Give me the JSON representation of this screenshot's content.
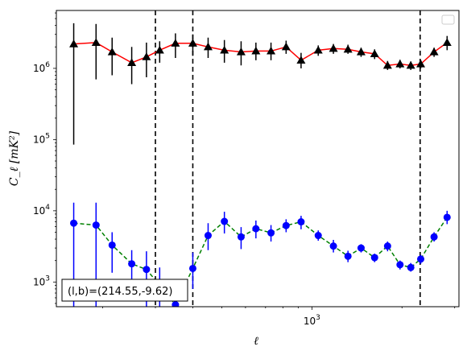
{
  "chart_data": {
    "type": "scatter",
    "title": "",
    "xlabel": "ℓ",
    "ylabel": "C_ℓ  [mK²]",
    "xscale": "log",
    "yscale": "log",
    "xlim": [
      140,
      3100
    ],
    "ylim": [
      450,
      6500000
    ],
    "grid": false,
    "legend": "top-right",
    "annotation": "(l,b)=(214.55,-9.62)",
    "x_ticks": [
      {
        "value": 1000,
        "label": "10^3"
      }
    ],
    "y_ticks": [
      {
        "value": 1000,
        "label": "10^3"
      },
      {
        "value": 10000,
        "label": "10^4"
      },
      {
        "value": 100000,
        "label": "10^5"
      },
      {
        "value": 1000000,
        "label": "10^6"
      }
    ],
    "vertical_lines": [
      300,
      400,
      2300
    ],
    "series": [
      {
        "marker": "triangle",
        "line_style": "solid",
        "color": "#000000",
        "line_color": "#ff0000",
        "x": [
          160,
          190,
          215,
          250,
          280,
          310,
          350,
          400,
          450,
          510,
          580,
          650,
          730,
          820,
          920,
          1050,
          1180,
          1320,
          1460,
          1620,
          1790,
          1970,
          2140,
          2310,
          2560,
          2830
        ],
        "y": [
          2200000,
          2300000,
          1700000,
          1200000,
          1450000,
          1800000,
          2250000,
          2250000,
          2000000,
          1800000,
          1700000,
          1750000,
          1750000,
          2000000,
          1300000,
          1800000,
          1900000,
          1850000,
          1700000,
          1600000,
          1100000,
          1150000,
          1100000,
          1150000,
          1700000,
          2300000
        ],
        "y_low": [
          85000,
          700000,
          800000,
          600000,
          750000,
          1200000,
          1400000,
          1500000,
          1400000,
          1200000,
          1100000,
          1300000,
          1300000,
          1600000,
          1000000,
          1500000,
          1600000,
          1600000,
          1450000,
          1350000,
          950000,
          1000000,
          950000,
          1000000,
          1450000,
          1800000
        ],
        "y_high": [
          4300000,
          4200000,
          2700000,
          2000000,
          2300000,
          2400000,
          3100000,
          3000000,
          2700000,
          2500000,
          2400000,
          2300000,
          2300000,
          2450000,
          1650000,
          2100000,
          2200000,
          2150000,
          1950000,
          1850000,
          1270000,
          1320000,
          1250000,
          1300000,
          1950000,
          2850000
        ]
      },
      {
        "marker": "circle",
        "line_style": "dashed",
        "color": "#0000ff",
        "line_color": "#008000",
        "x": [
          160,
          190,
          215,
          250,
          280,
          310,
          350,
          400,
          450,
          510,
          580,
          650,
          730,
          820,
          920,
          1050,
          1180,
          1320,
          1460,
          1620,
          1790,
          1970,
          2140,
          2310,
          2560,
          2830
        ],
        "y": [
          6700,
          6300,
          3300,
          1800,
          1500,
          900,
          480,
          1550,
          4500,
          7100,
          4300,
          5600,
          4900,
          6200,
          7000,
          4500,
          3200,
          2300,
          3000,
          2200,
          3200,
          1750,
          1600,
          2100,
          4300,
          8100
        ],
        "y_low": [
          450,
          450,
          1350,
          900,
          450,
          450,
          450,
          800,
          2800,
          4800,
          2900,
          4100,
          3700,
          5000,
          5500,
          3800,
          2600,
          1900,
          2600,
          1900,
          2700,
          1500,
          1400,
          1800,
          3700,
          6500
        ],
        "y_high": [
          13000,
          13000,
          5000,
          2800,
          2700,
          1600,
          900,
          2600,
          6700,
          9700,
          5900,
          7300,
          6300,
          7600,
          8500,
          5300,
          3900,
          2750,
          3400,
          2500,
          3700,
          2000,
          1850,
          2400,
          5000,
          10000
        ]
      }
    ]
  }
}
